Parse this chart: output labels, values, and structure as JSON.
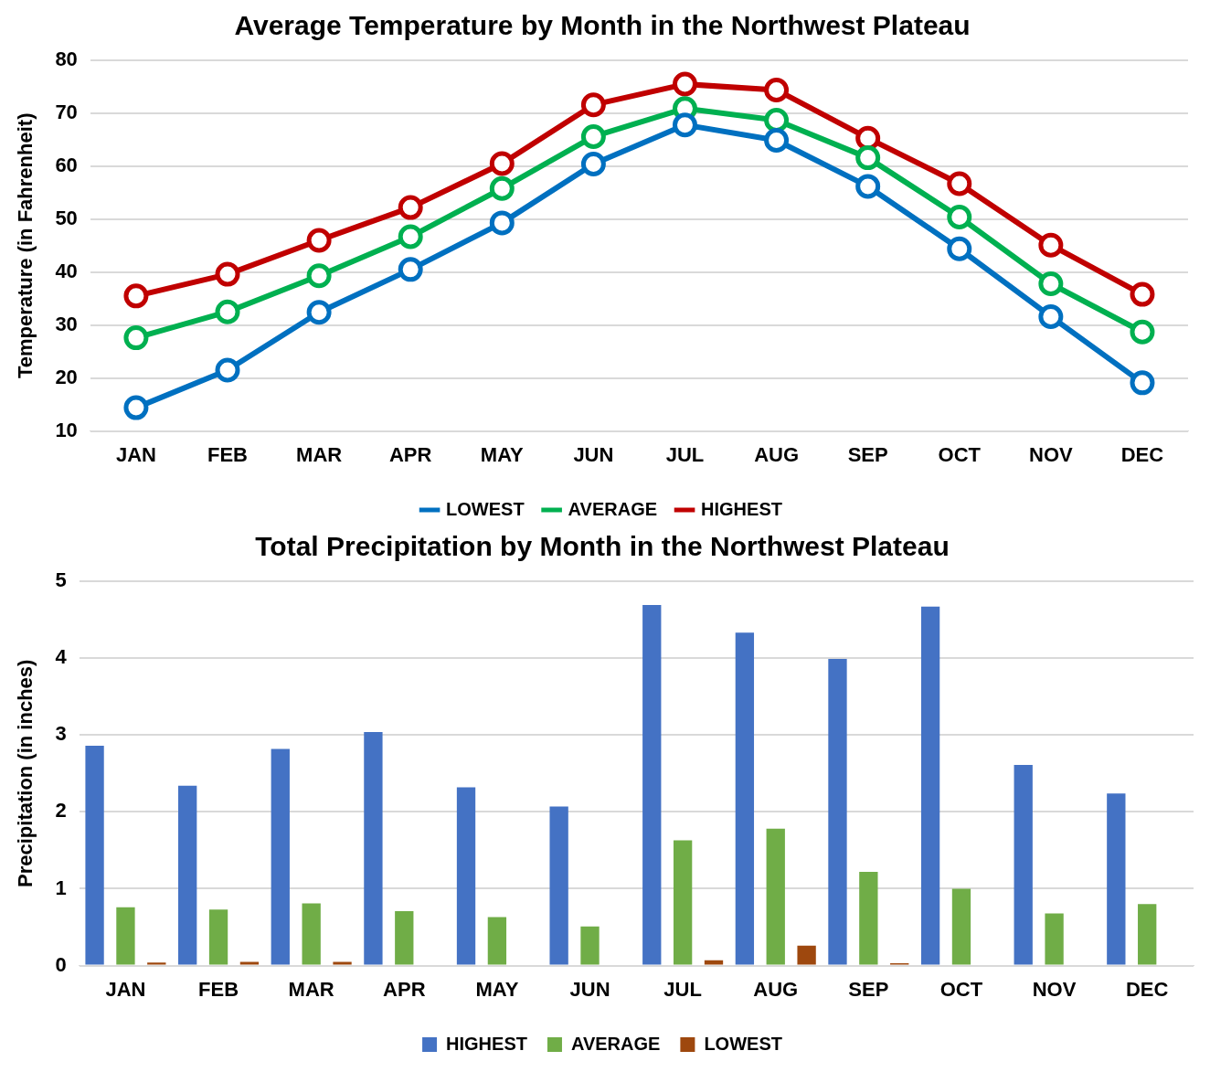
{
  "chart_data": [
    {
      "type": "line",
      "title": "Average Temperature by Month in the Northwest Plateau",
      "ylabel": "Temperature (in Fahrenheit)",
      "categories": [
        "JAN",
        "FEB",
        "MAR",
        "APR",
        "MAY",
        "JUN",
        "JUL",
        "AUG",
        "SEP",
        "OCT",
        "NOV",
        "DEC"
      ],
      "series": [
        {
          "name": "LOWEST",
          "color": "#0070c0",
          "values": [
            14.4,
            21.5,
            32.4,
            40.5,
            49.3,
            60.4,
            67.8,
            64.9,
            56.2,
            44.4,
            31.6,
            19.1
          ]
        },
        {
          "name": "AVERAGE",
          "color": "#00b050",
          "values": [
            27.6,
            32.5,
            39.3,
            46.7,
            55.8,
            65.6,
            70.9,
            68.7,
            61.6,
            50.4,
            37.8,
            28.7
          ]
        },
        {
          "name": "HIGHEST",
          "color": "#c00000",
          "values": [
            35.5,
            39.6,
            46,
            52.2,
            60.5,
            71.6,
            75.5,
            74.4,
            65.3,
            56.7,
            45.1,
            35.8
          ]
        }
      ],
      "ylim": [
        10,
        80
      ],
      "yticks": [
        10,
        20,
        30,
        40,
        50,
        60,
        70,
        80
      ],
      "grid": "y",
      "legend": "bottom",
      "marker": "circle",
      "line_style": "solid"
    },
    {
      "type": "bar",
      "title": "Total Precipitation by Month in the Northwest Plateau",
      "ylabel": "Precipitation (in inches)",
      "categories": [
        "JAN",
        "FEB",
        "MAR",
        "APR",
        "MAY",
        "JUN",
        "JUL",
        "AUG",
        "SEP",
        "OCT",
        "NOV",
        "DEC"
      ],
      "series": [
        {
          "name": "HIGHEST",
          "color": "#4472c4",
          "values": [
            2.86,
            2.34,
            2.82,
            3.04,
            2.32,
            2.07,
            4.69,
            4.33,
            3.99,
            4.67,
            2.61,
            2.24
          ]
        },
        {
          "name": "AVERAGE",
          "color": "#70ad47",
          "values": [
            0.76,
            0.73,
            0.81,
            0.71,
            0.63,
            0.51,
            1.63,
            1.78,
            1.22,
            1.0,
            0.68,
            0.8
          ]
        },
        {
          "name": "LOWEST",
          "color": "#9e480e",
          "values": [
            0.04,
            0.05,
            0.05,
            0,
            0,
            0,
            0.07,
            0.26,
            0.03,
            0,
            0,
            0
          ]
        }
      ],
      "ylim": [
        0,
        5
      ],
      "yticks": [
        0,
        1,
        2,
        3,
        4,
        5
      ],
      "grid": "y",
      "legend": "bottom"
    }
  ]
}
